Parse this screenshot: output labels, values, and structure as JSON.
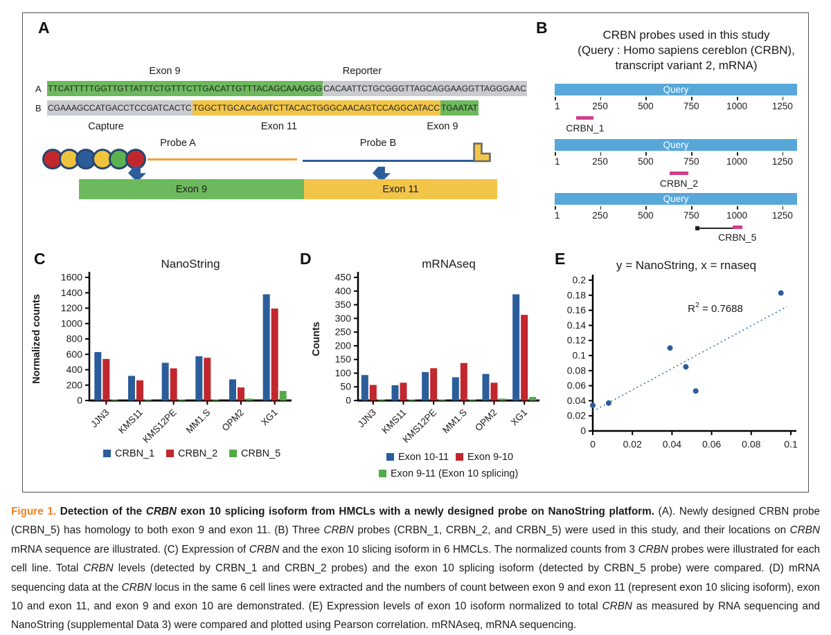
{
  "panelA": {
    "label": "A",
    "row_a": {
      "side_label": "A",
      "seg1": "TTCATTTTTGGTTGTTATTTCTGTTTCTTGACATTGTTTACAGCAAAGGG",
      "seg2": "CACAATTCTGCGGGTTAGCAGGAAGGTTAGGGAAC"
    },
    "row_b": {
      "side_label": "B",
      "seg1": "CGAAAGCCATGACCTCCGATCACTC",
      "seg2": "TGGCTTGCACAGATCTTACACTGGGCAACAGTCCAGGCATACC",
      "seg3": "TGAATAT"
    },
    "label_exon9_top": "Exon 9",
    "label_reporter": "Reporter",
    "label_capture": "Capture",
    "label_exon11_mid": "Exon 11",
    "label_exon9_mid": "Exon 9",
    "probe_a": "Probe A",
    "probe_b": "Probe B",
    "bar_exon9": "Exon 9",
    "bar_exon11": "Exon 11",
    "bead_colors": [
      "#c1272d",
      "#f0c33d",
      "#2b5d9b",
      "#f0c33d",
      "#5cb150",
      "#c1272d"
    ]
  },
  "panelB": {
    "label": "B",
    "title_line1": "CRBN probes used in this study",
    "title_line2": "(Query : Homo sapiens cereblon (CRBN),",
    "title_line3": "transcript variant 2, mRNA)",
    "query_label": "Query",
    "scale_ticks": [
      1,
      250,
      500,
      750,
      1000,
      1250
    ],
    "scale_max": 1330,
    "bar_color": "#57a7d9",
    "probe_color": "#d23c8b",
    "probes": [
      {
        "name": "CRBN_1",
        "start": 120,
        "end": 215
      },
      {
        "name": "CRBN_2",
        "start": 630,
        "end": 735
      },
      {
        "name": "CRBN_5",
        "start": 975,
        "end": 1030,
        "connector_start": 780
      }
    ]
  },
  "chart_data": [
    {
      "id": "nanostring",
      "panel_label": "C",
      "type": "bar",
      "title": "NanoString",
      "ylabel": "Normalized counts",
      "ylim": [
        0,
        1600
      ],
      "ytick": 200,
      "grid": false,
      "categories": [
        "JJN3",
        "KMS11",
        "KMS12PE",
        "MM1.S",
        "OPM2",
        "XG1"
      ],
      "series": [
        {
          "name": "CRBN_1",
          "color": "#2b5d9b",
          "values": [
            630,
            320,
            490,
            575,
            275,
            1380
          ]
        },
        {
          "name": "CRBN_2",
          "color": "#c1272d",
          "values": [
            540,
            262,
            418,
            555,
            170,
            1195
          ]
        },
        {
          "name": "CRBN_5",
          "color": "#52ab47",
          "values": [
            8,
            12,
            10,
            12,
            25,
            125
          ]
        }
      ],
      "legend_position": "bottom"
    },
    {
      "id": "mrnaseq",
      "panel_label": "D",
      "type": "bar",
      "title": "mRNAseq",
      "ylabel": "Counts",
      "ylim": [
        0,
        450
      ],
      "ytick": 50,
      "grid": false,
      "categories": [
        "JJN3",
        "KMS11",
        "KMS12PE",
        "MM1.S",
        "OPM2",
        "XG1"
      ],
      "series": [
        {
          "name": "Exon 10-11",
          "color": "#2b5d9b",
          "values": [
            93,
            56,
            104,
            85,
            97,
            388
          ]
        },
        {
          "name": "Exon 9-10",
          "color": "#c1272d",
          "values": [
            57,
            65,
            118,
            137,
            65,
            313
          ]
        },
        {
          "name": "Exon 9-11 (Exon 10 splicing)",
          "color": "#52ab47",
          "values": [
            1,
            1,
            3,
            2,
            7,
            13
          ]
        }
      ],
      "legend_position": "bottom"
    },
    {
      "id": "correlation",
      "panel_label": "E",
      "type": "scatter",
      "title": "y = NanoString, x = rnaseq",
      "xlim": [
        0,
        0.1
      ],
      "xtick": 0.02,
      "ylim": [
        0,
        0.2
      ],
      "ytick": 0.02,
      "grid": false,
      "points": [
        [
          0,
          0.034
        ],
        [
          0.008,
          0.037
        ],
        [
          0.039,
          0.11
        ],
        [
          0.047,
          0.085
        ],
        [
          0.052,
          0.053
        ],
        [
          0.095,
          0.183
        ]
      ],
      "trendline": {
        "x1": 0,
        "y1": 0.026,
        "x2": 0.098,
        "y2": 0.165
      },
      "r2_base": "R",
      "r2_sup": "2",
      "r2_rest": " = 0.7688",
      "point_color": "#2b5d9b",
      "line_color": "#3a6fb0"
    }
  ],
  "caption": {
    "segments": [
      {
        "t": "Figure 1. ",
        "s": "ob"
      },
      {
        "t": "Detection of the ",
        "s": "b"
      },
      {
        "t": "CRBN",
        "s": "bi"
      },
      {
        "t": " exon 10 splicing isoform from HMCLs with a newly designed probe on NanoString platform.",
        "s": "b"
      },
      {
        "t": " (A). Newly designed CRBN probe (CRBN_5) has homology to both exon 9 and exon 11. (B) Three ",
        "s": ""
      },
      {
        "t": "CRBN",
        "s": "i"
      },
      {
        "t": " probes (CRBN_1, CRBN_2, and CRBN_5) were used in this study, and their locations on ",
        "s": ""
      },
      {
        "t": "CRBN",
        "s": "i"
      },
      {
        "t": " mRNA sequence are illustrated. (C) Expression of ",
        "s": ""
      },
      {
        "t": "CRBN",
        "s": "i"
      },
      {
        "t": " and the exon 10 slicing isoform in 6 HMCLs. The normalized counts from 3 ",
        "s": ""
      },
      {
        "t": "CRBN",
        "s": "i"
      },
      {
        "t": " probes were illustrated for each cell line. Total ",
        "s": ""
      },
      {
        "t": "CRBN",
        "s": "i"
      },
      {
        "t": " levels (detected by CRBN_1 and CRBN_2 probes) and the exon 10 splicing isoform (detected by CRBN_5 probe) were compared. (D) mRNA sequencing data at the ",
        "s": ""
      },
      {
        "t": "CRBN",
        "s": "i"
      },
      {
        "t": " locus in the same 6 cell lines were extracted and the numbers of count between exon 9 and exon 11 (represent exon 10 slicing isoform), exon 10 and exon 11, and exon 9 and exon 10 are demonstrated. (E) Expression levels of exon 10 isoform normalized to total ",
        "s": ""
      },
      {
        "t": "CRBN",
        "s": "i"
      },
      {
        "t": " as measured by RNA sequencing and NanoString (supplemental Data 3) were compared and plotted using Pearson correlation. mRNAseq, mRNA sequencing.",
        "s": ""
      }
    ]
  }
}
